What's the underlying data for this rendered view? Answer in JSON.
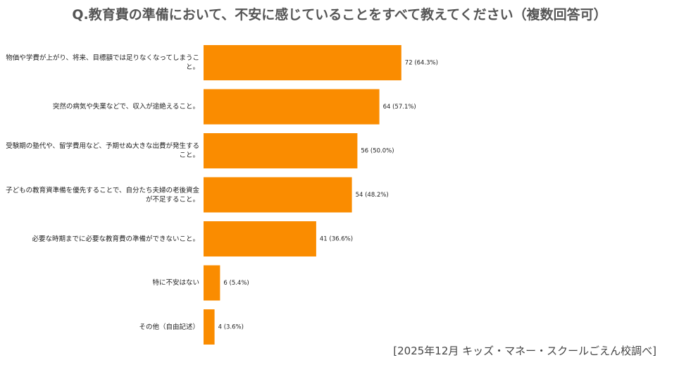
{
  "chart_data": {
    "type": "bar",
    "orientation": "horizontal",
    "title": "Q.教育費の準備において、不安に感じていることをすべて教えてください（複数回答可）",
    "source": "[2025年12月 キッズ・マネー・スクールごえん校調べ]",
    "categories": [
      "物価や学費が上がり、将来、目標額では足りなくなってしまうこと。",
      "突然の病気や失業などで、収入が途絶えること。",
      "受験期の塾代や、留学費用など、予期せぬ大きな出費が発生すること。",
      "子どもの教育資準備を優先することで、自分たち夫婦の老後資金が不足すること。",
      "必要な時期までに必要な教育費の準備ができないこと。",
      "特に不安はない",
      "その他（自由記述）"
    ],
    "values": [
      72,
      64,
      56,
      54,
      41,
      6,
      4
    ],
    "value_labels": [
      "72 (64.3%)",
      "64 (57.1%)",
      "56 (50.0%)",
      "54 (48.2%)",
      "41 (36.6%)",
      "6 (5.4%)",
      "4 (3.6%)"
    ],
    "color": "#fa8c00"
  }
}
